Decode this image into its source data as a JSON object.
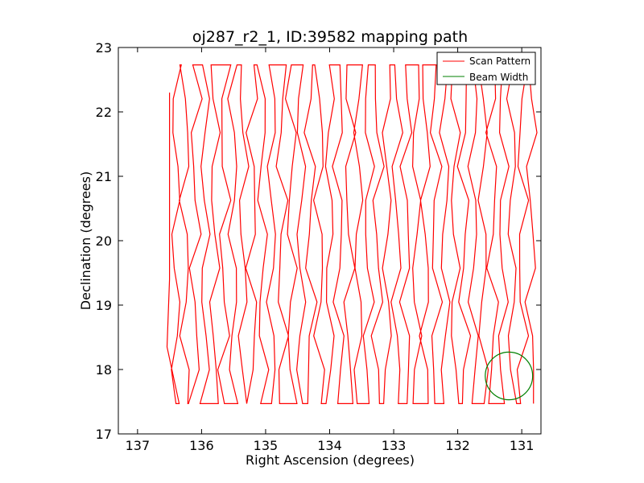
{
  "chart_data": {
    "type": "line",
    "title": "oj287_r2_1, ID:39582 mapping path",
    "xlabel": "Right Ascension (degrees)",
    "ylabel": "Declination (degrees)",
    "xlim": [
      137.3,
      130.7
    ],
    "ylim": [
      17,
      23
    ],
    "x_inverted": true,
    "xticks": [
      137,
      136,
      135,
      134,
      133,
      132,
      131
    ],
    "yticks": [
      17,
      18,
      19,
      20,
      21,
      22,
      23
    ],
    "grid": false,
    "legend_position": "top-right",
    "series": [
      {
        "name": "Scan Pattern",
        "color": "#ff0000",
        "style": "raster",
        "scan_count": 38,
        "ra_start": 136.4,
        "ra_step": -0.15,
        "dec_min": 17.47,
        "dec_max": 22.73,
        "start_point": [
          136.5,
          22.3
        ]
      },
      {
        "name": "Beam Width",
        "color": "#008000",
        "style": "circle",
        "center": [
          131.2,
          17.9
        ],
        "radius_deg": 0.37
      }
    ]
  }
}
